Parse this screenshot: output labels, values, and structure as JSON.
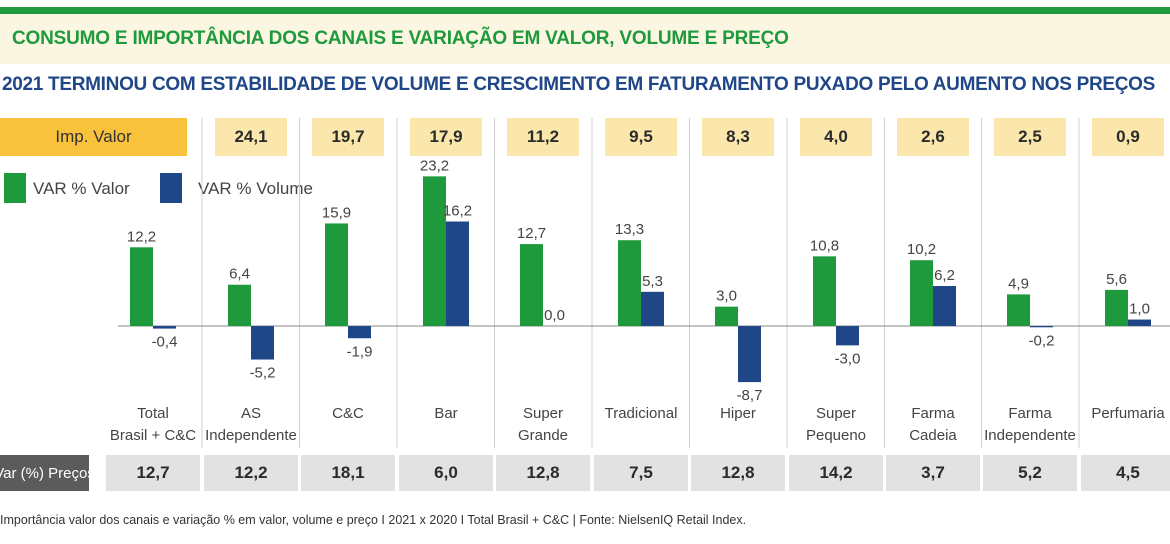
{
  "header": {
    "title": "CONSUMO E IMPORTÂNCIA DOS CANAIS E VARIAÇÃO EM VALOR, VOLUME E PREÇO",
    "subtitle": "2021 TERMINOU COM ESTABILIDADE DE VOLUME E CRESCIMENTO EM FATURAMENTO PUXADO PELO AUMENTO NOS PREÇOS"
  },
  "imp_row": {
    "label": "Imp. Valor",
    "values": [
      "24,1",
      "19,7",
      "17,9",
      "11,2",
      "9,5",
      "8,3",
      "4,0",
      "2,6",
      "2,5",
      "0,9"
    ]
  },
  "legend": {
    "valor": "VAR % Valor",
    "volume": "VAR % Volume"
  },
  "preco_row": {
    "label": "Var (%) Preços",
    "values": [
      "12,7",
      "12,2",
      "18,1",
      "6,0",
      "12,8",
      "7,5",
      "12,8",
      "14,2",
      "3,7",
      "5,2",
      "4,5"
    ]
  },
  "footnote": "Importância valor dos canais e variação % em valor, volume e preço I 2021 x 2020 I Total Brasil + C&C | Fonte: NielsenIQ Retail Index.",
  "colors": {
    "valor": "#1e9a3c",
    "volume": "#1f4686",
    "imp_label_bg": "#f9c23c",
    "imp_box_bg": "#fbe6ac",
    "preco_label_bg": "#5b5b5b",
    "preco_box_bg": "#e2e2e2"
  },
  "chart_data": {
    "type": "bar",
    "categories": [
      [
        "Total",
        "Brasil + C&C"
      ],
      [
        "AS",
        "Independente"
      ],
      [
        "C&C"
      ],
      [
        "Bar"
      ],
      [
        "Super",
        "Grande"
      ],
      [
        "Tradicional"
      ],
      [
        "Hiper"
      ],
      [
        "Super",
        "Pequeno"
      ],
      [
        "Farma",
        "Cadeia"
      ],
      [
        "Farma",
        "Independente"
      ],
      [
        "Perfumaria"
      ]
    ],
    "series": [
      {
        "name": "VAR % Valor",
        "values": [
          12.2,
          6.4,
          15.9,
          23.2,
          12.7,
          13.3,
          3.0,
          10.8,
          10.2,
          4.9,
          5.6
        ],
        "labels": [
          "12,2",
          "6,4",
          "15,9",
          "23,2",
          "12,7",
          "13,3",
          "3,0",
          "10,8",
          "10,2",
          "4,9",
          "5,6"
        ]
      },
      {
        "name": "VAR % Volume",
        "values": [
          -0.4,
          -5.2,
          -1.9,
          16.2,
          0.0,
          5.3,
          -8.7,
          -3.0,
          6.2,
          -0.2,
          1.0
        ],
        "labels": [
          "-0,4",
          "-5,2",
          "-1,9",
          "16,2",
          "0,0",
          "5,3",
          "-8,7",
          "-3,0",
          "6,2",
          "-0,2",
          "1,0"
        ]
      }
    ],
    "legend_position": "top-left",
    "grid": false
  }
}
